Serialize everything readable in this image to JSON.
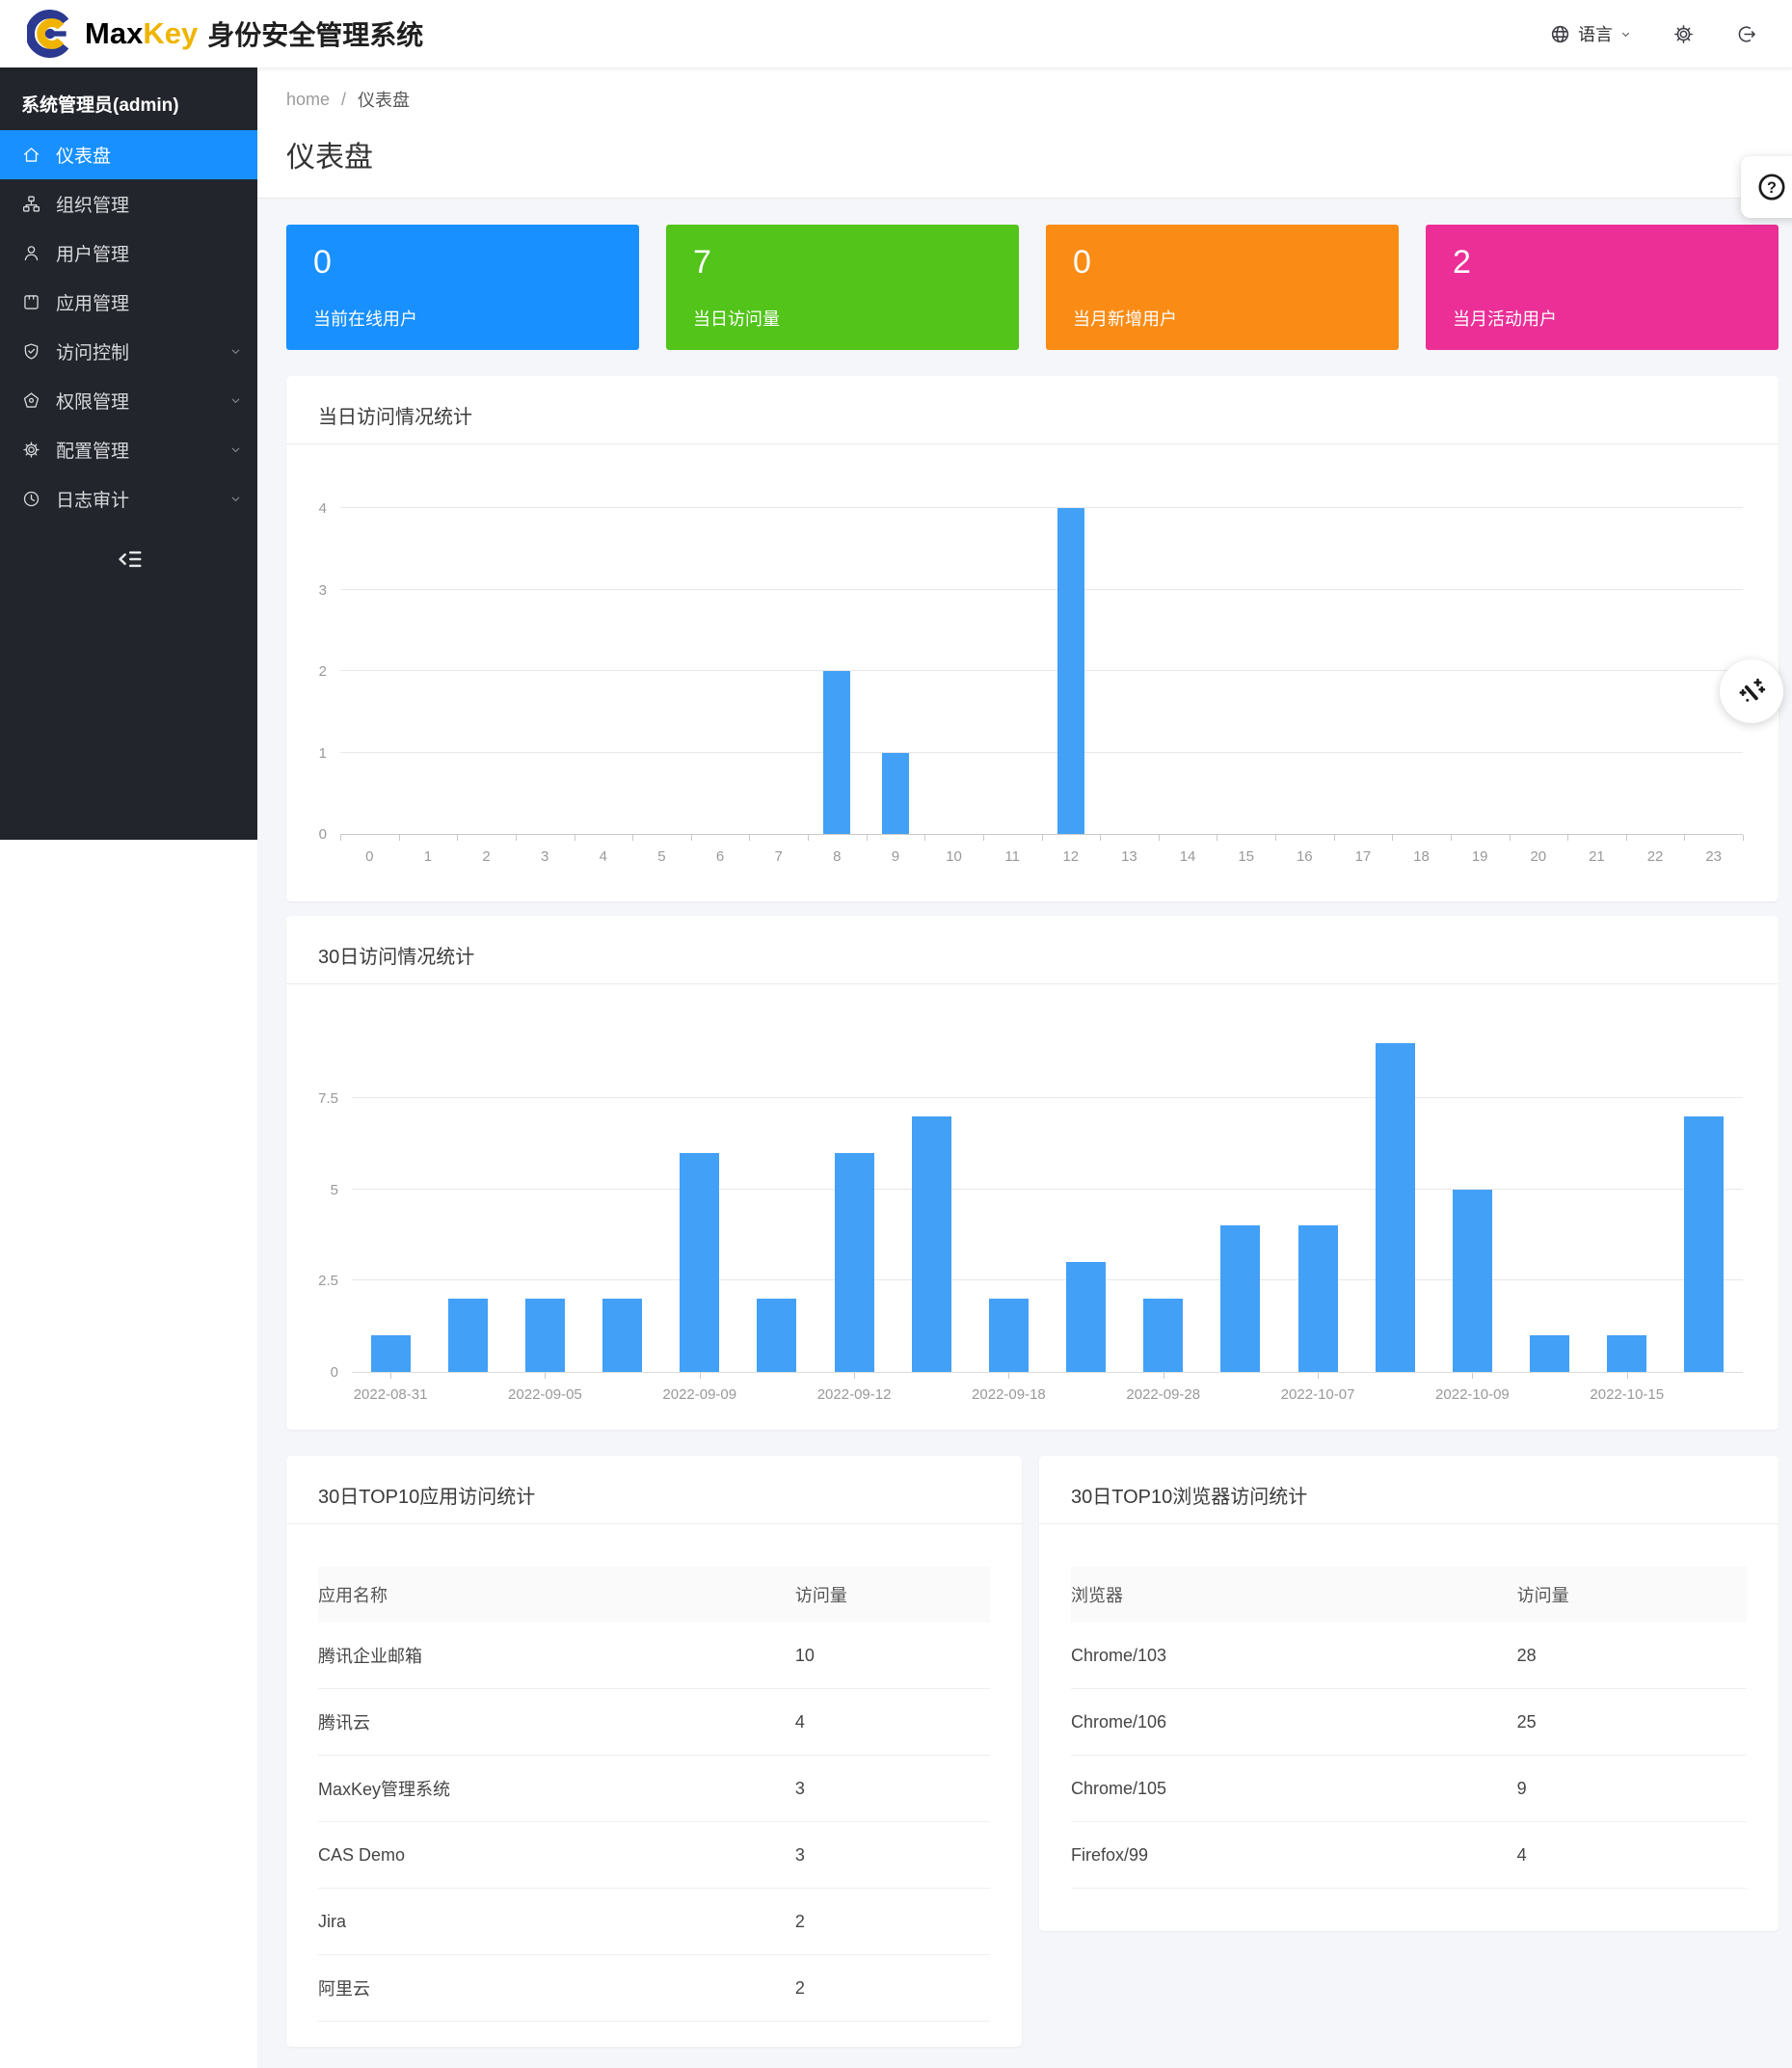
{
  "header": {
    "brand": {
      "max": "Max",
      "key": "Key",
      "suffix": "身份安全管理系统"
    },
    "language": {
      "label": "语言"
    },
    "colors": {
      "brand_blue": "#2b3990",
      "brand_yellow": "#f0b400"
    }
  },
  "sidebar": {
    "user_label": "系统管理员(admin)",
    "items": [
      {
        "label": "仪表盘",
        "icon": "home-icon",
        "active": true,
        "expandable": false
      },
      {
        "label": "组织管理",
        "icon": "org-icon",
        "active": false,
        "expandable": false
      },
      {
        "label": "用户管理",
        "icon": "user-icon",
        "active": false,
        "expandable": false
      },
      {
        "label": "应用管理",
        "icon": "app-icon",
        "active": false,
        "expandable": false
      },
      {
        "label": "访问控制",
        "icon": "shield-check-icon",
        "active": false,
        "expandable": true
      },
      {
        "label": "权限管理",
        "icon": "pentagon-icon",
        "active": false,
        "expandable": true
      },
      {
        "label": "配置管理",
        "icon": "gear-icon",
        "active": false,
        "expandable": true
      },
      {
        "label": "日志审计",
        "icon": "clock-icon",
        "active": false,
        "expandable": true
      }
    ]
  },
  "breadcrumb": {
    "home": "home",
    "separator": "/",
    "current": "仪表盘"
  },
  "page_title": "仪表盘",
  "stats": [
    {
      "value": "0",
      "label": "当前在线用户",
      "color": "#1890ff"
    },
    {
      "value": "7",
      "label": "当日访问量",
      "color": "#52c41a"
    },
    {
      "value": "0",
      "label": "当月新增用户",
      "color": "#fa8c16"
    },
    {
      "value": "2",
      "label": "当月活动用户",
      "color": "#eb2f96"
    }
  ],
  "chart_data": [
    {
      "type": "bar",
      "title": "当日访问情况统计",
      "xlabel": "",
      "ylabel": "",
      "x_labels": [
        "0",
        "1",
        "2",
        "3",
        "4",
        "5",
        "6",
        "7",
        "8",
        "9",
        "10",
        "11",
        "12",
        "13",
        "14",
        "15",
        "16",
        "17",
        "18",
        "19",
        "20",
        "21",
        "22",
        "23"
      ],
      "values": [
        0,
        0,
        0,
        0,
        0,
        0,
        0,
        0,
        2,
        1,
        0,
        0,
        4,
        0,
        0,
        0,
        0,
        0,
        0,
        0,
        0,
        0,
        0,
        0
      ],
      "yticks": [
        0,
        1,
        2,
        3,
        4
      ],
      "ylim": [
        0,
        4
      ],
      "grid": true,
      "legend": "none",
      "bar_color": "#42a0f7"
    },
    {
      "type": "bar",
      "title": "30日访问情况统计",
      "xlabel": "",
      "ylabel": "",
      "x_labels": [
        "2022-08-31",
        "",
        "2022-09-05",
        "",
        "2022-09-09",
        "",
        "2022-09-12",
        "",
        "2022-09-18",
        "",
        "2022-09-28",
        "",
        "2022-10-07",
        "",
        "2022-10-09",
        "",
        "2022-10-15",
        ""
      ],
      "values": [
        1,
        2,
        2,
        2,
        6,
        2,
        6,
        7,
        2,
        3,
        2,
        4,
        4,
        9,
        5,
        1,
        1,
        7
      ],
      "yticks": [
        0,
        2.5,
        5,
        7.5
      ],
      "ylim": [
        0,
        9.5
      ],
      "grid": true,
      "legend": "none",
      "bar_color": "#42a0f7"
    }
  ],
  "tables": [
    {
      "title": "30日TOP10应用访问统计",
      "headers": [
        "应用名称",
        "访问量"
      ],
      "rows": [
        [
          "腾讯企业邮箱",
          "10"
        ],
        [
          "腾讯云",
          "4"
        ],
        [
          "MaxKey管理系统",
          "3"
        ],
        [
          "CAS Demo",
          "3"
        ],
        [
          "Jira",
          "2"
        ],
        [
          "阿里云",
          "2"
        ]
      ]
    },
    {
      "title": "30日TOP10浏览器访问统计",
      "headers": [
        "浏览器",
        "访问量"
      ],
      "rows": [
        [
          "Chrome/103",
          "28"
        ],
        [
          "Chrome/106",
          "25"
        ],
        [
          "Chrome/105",
          "9"
        ],
        [
          "Firefox/99",
          "4"
        ]
      ]
    }
  ]
}
